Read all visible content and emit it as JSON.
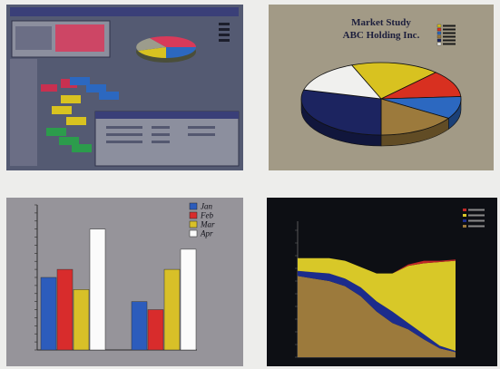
{
  "charts": {
    "workspace": {
      "colors": {
        "desktop": "#545a72",
        "window": "#8c8f9e",
        "titlebar": "#3a3f78",
        "accent": "#d83a5a"
      }
    },
    "market_pie": {
      "title_line1": "Market Study",
      "title_line2": "ABC Holding Inc.",
      "background": "#a29a86"
    },
    "monthly_bars": {
      "background": "#96949a"
    },
    "area_dark": {
      "background": "#0d0f14"
    }
  },
  "chart_data": [
    {
      "type": "pie",
      "title": "Market Study",
      "subtitle": "ABC Holding Inc.",
      "slices": [
        {
          "value": 18,
          "color": "#d8c220"
        },
        {
          "value": 12,
          "color": "#d83020"
        },
        {
          "value": 10,
          "color": "#2c68c0"
        },
        {
          "value": 16,
          "color": "#9c7a3c"
        },
        {
          "value": 29,
          "color": "#1c2460"
        },
        {
          "value": 15,
          "color": "#f0f0ee"
        }
      ]
    },
    {
      "type": "bar",
      "categories": [
        "",
        ""
      ],
      "legend": [
        "Jan",
        "Feb",
        "Mar",
        "Apr"
      ],
      "series": [
        {
          "name": "Jan",
          "color": "#2c5cbc",
          "values": [
            900,
            600
          ]
        },
        {
          "name": "Feb",
          "color": "#d82c2c",
          "values": [
            1000,
            500
          ]
        },
        {
          "name": "Mar",
          "color": "#d8c028",
          "values": [
            750,
            1000
          ]
        },
        {
          "name": "Apr",
          "color": "#fbfbfb",
          "values": [
            1500,
            1250
          ]
        }
      ],
      "ylim": [
        0,
        1800
      ],
      "legend_position": "top-right",
      "grid": false
    },
    {
      "type": "area",
      "x": [
        0,
        1,
        2,
        3,
        4,
        5,
        6,
        7,
        8,
        9,
        10
      ],
      "ylim": [
        0,
        100
      ],
      "stacked": true,
      "series": [
        {
          "color": "#9c7a3c",
          "values": [
            64,
            62,
            60,
            56,
            48,
            36,
            27,
            22,
            14,
            7,
            4
          ]
        },
        {
          "color": "#1c2c8c",
          "values": [
            4,
            5,
            6,
            6,
            7,
            8,
            9,
            5,
            4,
            2,
            1
          ]
        },
        {
          "color": "#d8c828",
          "values": [
            10,
            11,
            12,
            14,
            16,
            22,
            30,
            45,
            56,
            66,
            71
          ]
        },
        {
          "color": "#c02828",
          "values": [
            0,
            0,
            0,
            0,
            0,
            0,
            0,
            1,
            2,
            1,
            1
          ]
        }
      ],
      "grid": false
    }
  ]
}
